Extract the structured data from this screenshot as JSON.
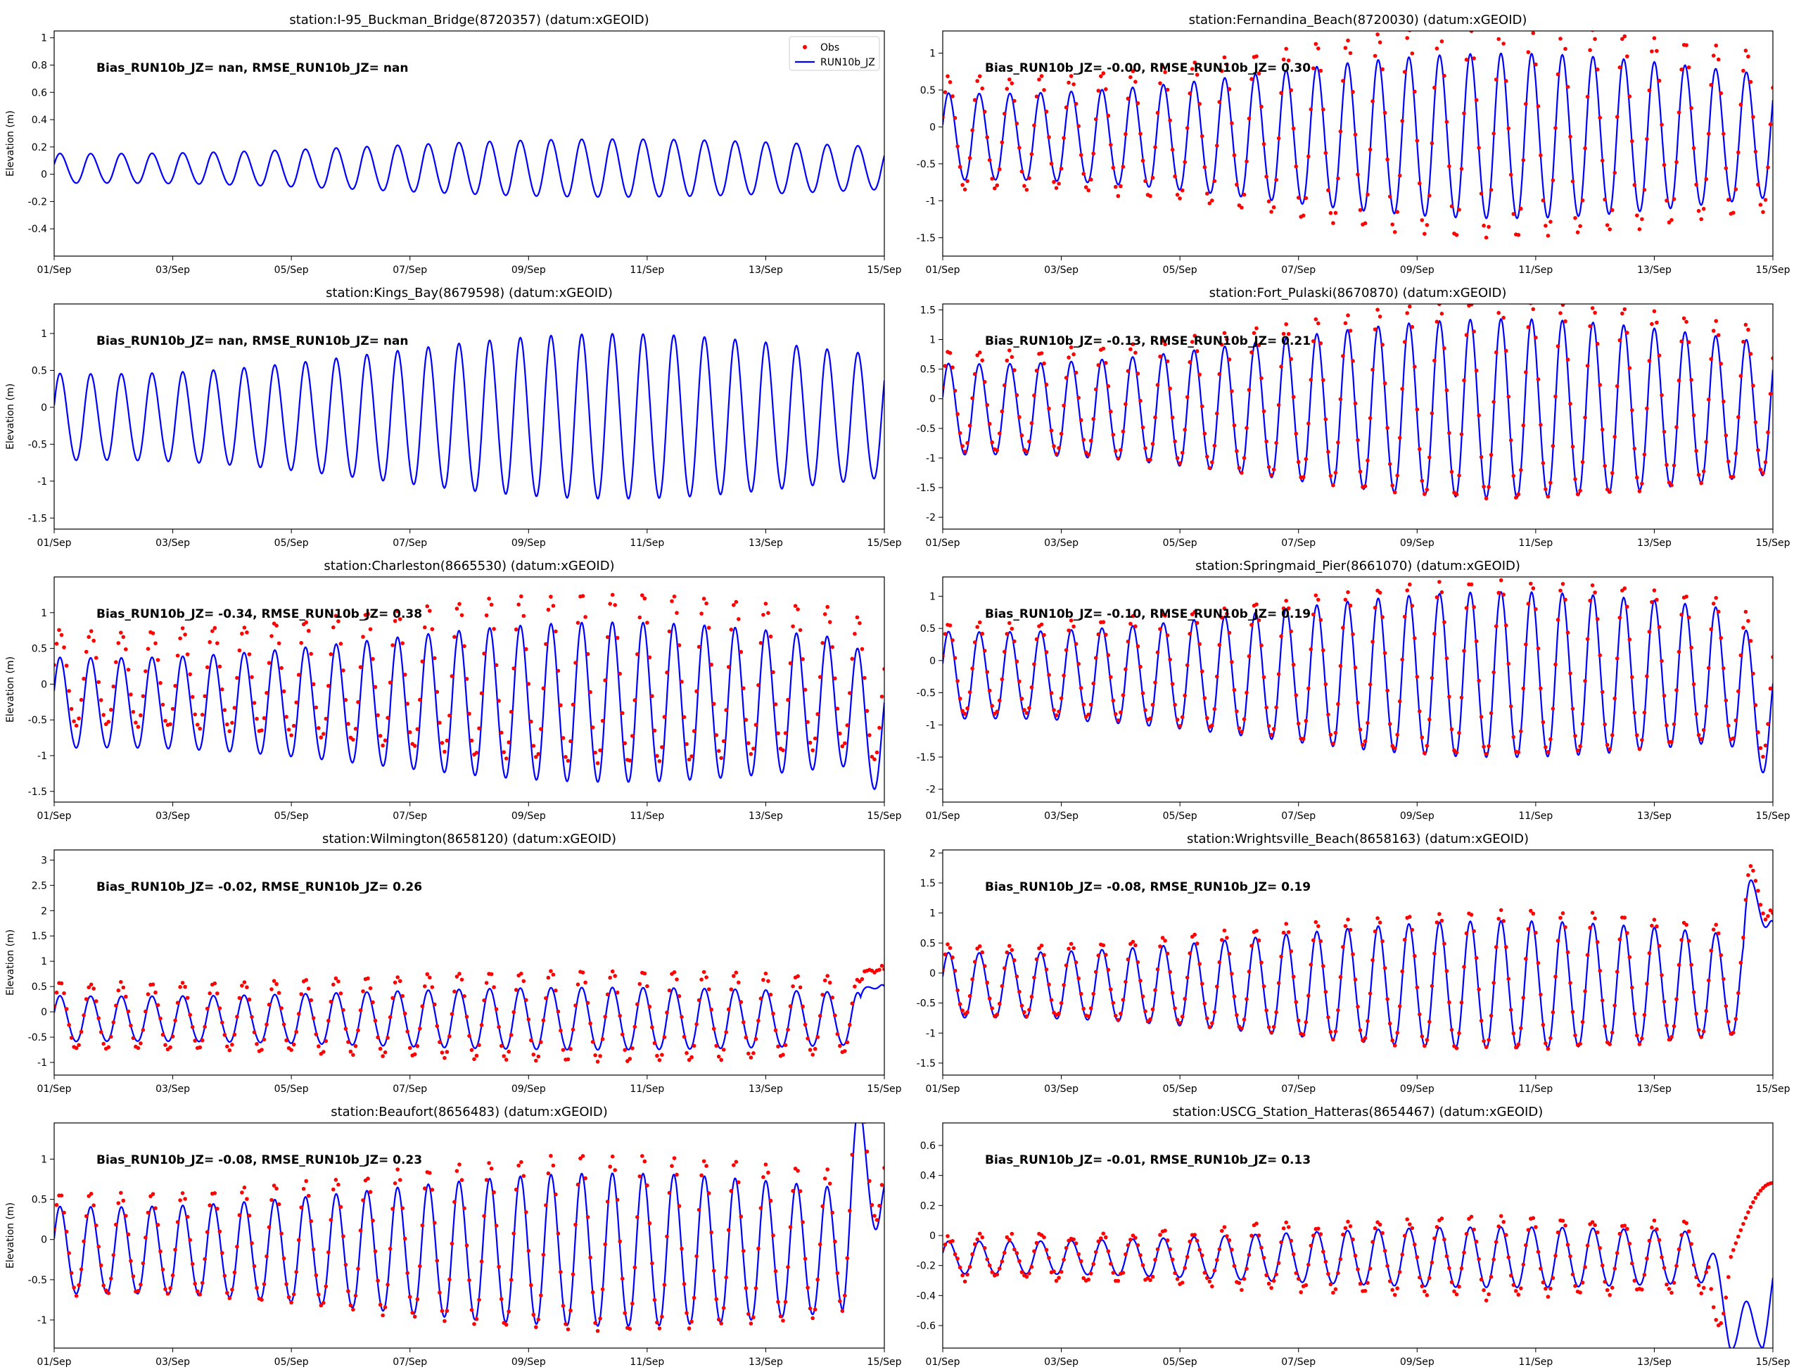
{
  "figure": {
    "xlabel": "",
    "ylabel": "Elevation (m)",
    "x_tick_labels": [
      "01/Sep",
      "03/Sep",
      "05/Sep",
      "07/Sep",
      "09/Sep",
      "11/Sep",
      "13/Sep",
      "15/Sep"
    ],
    "legend": {
      "obs_label": "Obs",
      "model_label": "RUN10b_JZ",
      "placement": "top-right of first panel"
    },
    "colors": {
      "obs": "#ff0000",
      "model": "#0000ff",
      "axes": "#000000",
      "background": "#ffffff"
    }
  },
  "chart_data": [
    {
      "type": "line",
      "title": "station:I-95_Buckman_Bridge(8720357) (datum:xGEOID)",
      "stats": "Bias_RUN10b_JZ=   nan, RMSE_RUN10b_JZ=   nan",
      "ylabel": "Elevation (m)",
      "ylim": [
        -0.6,
        1.05
      ],
      "yticks": [
        -0.4,
        -0.2,
        0.0,
        0.2,
        0.4,
        0.6,
        0.8,
        1.0
      ],
      "xlim_days": [
        0,
        14
      ],
      "has_obs": false,
      "show_legend": true,
      "model_mean": 0.04,
      "model_amp_start": 0.12,
      "model_amp_end": 0.19,
      "obs_bias": 0,
      "obs_amp_factor": 1,
      "event": null
    },
    {
      "type": "line",
      "title": "station:Fernandina_Beach(8720030) (datum:xGEOID)",
      "stats": "Bias_RUN10b_JZ= -0.00, RMSE_RUN10b_JZ=  0.30",
      "ylabel": "",
      "ylim": [
        -1.75,
        1.3
      ],
      "yticks": [
        -1.5,
        -1.0,
        -0.5,
        0.0,
        0.5,
        1.0
      ],
      "xlim_days": [
        0,
        14
      ],
      "has_obs": true,
      "show_legend": false,
      "model_mean": -0.15,
      "model_amp_start": 0.65,
      "model_amp_end": 1.0,
      "obs_bias": 0.05,
      "obs_amp_factor": 1.28,
      "event": null
    },
    {
      "type": "line",
      "title": "station:Kings_Bay(8679598) (datum:xGEOID)",
      "stats": "Bias_RUN10b_JZ=   nan, RMSE_RUN10b_JZ=   nan",
      "ylabel": "Elevation (m)",
      "ylim": [
        -1.65,
        1.4
      ],
      "yticks": [
        -1.5,
        -1.0,
        -0.5,
        0.0,
        0.5,
        1.0
      ],
      "xlim_days": [
        0,
        14
      ],
      "has_obs": false,
      "show_legend": false,
      "model_mean": -0.15,
      "model_amp_start": 0.65,
      "model_amp_end": 1.0,
      "obs_bias": 0,
      "obs_amp_factor": 1,
      "event": null
    },
    {
      "type": "line",
      "title": "station:Fort_Pulaski(8670870) (datum:xGEOID)",
      "stats": "Bias_RUN10b_JZ= -0.13, RMSE_RUN10b_JZ=  0.21",
      "ylabel": "",
      "ylim": [
        -2.2,
        1.6
      ],
      "yticks": [
        -2.0,
        -1.5,
        -1.0,
        -0.5,
        0.0,
        0.5,
        1.0,
        1.5
      ],
      "xlim_days": [
        0,
        14
      ],
      "has_obs": true,
      "show_legend": false,
      "model_mean": -0.2,
      "model_amp_start": 0.85,
      "model_amp_end": 1.35,
      "obs_bias": 0.13,
      "obs_amp_factor": 1.1,
      "event": null
    },
    {
      "type": "line",
      "title": "station:Charleston(8665530) (datum:xGEOID)",
      "stats": "Bias_RUN10b_JZ= -0.34, RMSE_RUN10b_JZ=  0.38",
      "ylabel": "Elevation (m)",
      "ylim": [
        -1.65,
        1.5
      ],
      "yticks": [
        -1.5,
        -1.0,
        -0.5,
        0.0,
        0.5,
        1.0
      ],
      "xlim_days": [
        0,
        14
      ],
      "has_obs": true,
      "show_legend": false,
      "model_mean": -0.28,
      "model_amp_start": 0.7,
      "model_amp_end": 1.0,
      "obs_bias": 0.34,
      "obs_amp_factor": 1.05,
      "event": {
        "type": "dip",
        "start": 13.4,
        "end": 14.0,
        "amount": -0.5,
        "obs_amount": -0.2
      }
    },
    {
      "type": "line",
      "title": "station:Springmaid_Pier(8661070) (datum:xGEOID)",
      "stats": "Bias_RUN10b_JZ= -0.10, RMSE_RUN10b_JZ=  0.19",
      "ylabel": "",
      "ylim": [
        -2.2,
        1.3
      ],
      "yticks": [
        -2.0,
        -1.5,
        -1.0,
        -0.5,
        0.0,
        0.5,
        1.0
      ],
      "xlim_days": [
        0,
        14
      ],
      "has_obs": true,
      "show_legend": false,
      "model_mean": -0.25,
      "model_amp_start": 0.75,
      "model_amp_end": 1.15,
      "obs_bias": 0.1,
      "obs_amp_factor": 1.05,
      "event": {
        "type": "dip",
        "start": 13.2,
        "end": 14.0,
        "amount": -0.7,
        "obs_amount": -0.1
      }
    },
    {
      "type": "line",
      "title": "station:Wilmington(8658120) (datum:xGEOID)",
      "stats": "Bias_RUN10b_JZ= -0.02, RMSE_RUN10b_JZ=  0.26",
      "ylabel": "Elevation (m)",
      "ylim": [
        -1.25,
        3.2
      ],
      "yticks": [
        -1.0,
        -0.5,
        0.0,
        0.5,
        1.0,
        1.5,
        2.0,
        2.5,
        3.0
      ],
      "xlim_days": [
        0,
        14
      ],
      "has_obs": true,
      "show_legend": false,
      "model_mean": -0.15,
      "model_amp_start": 0.5,
      "model_amp_end": 0.55,
      "obs_bias": 0.05,
      "obs_amp_factor": 1.45,
      "event": {
        "type": "surge",
        "start": 13.6,
        "end": 14.0,
        "amount": 1.1,
        "obs_amount": 1.3
      }
    },
    {
      "type": "line",
      "title": "station:Wrightsville_Beach(8658163) (datum:xGEOID)",
      "stats": "Bias_RUN10b_JZ= -0.08, RMSE_RUN10b_JZ=  0.19",
      "ylabel": "",
      "ylim": [
        -1.7,
        2.05
      ],
      "yticks": [
        -1.5,
        -1.0,
        -0.5,
        0.0,
        0.5,
        1.0,
        1.5,
        2.0
      ],
      "xlim_days": [
        0,
        14
      ],
      "has_obs": true,
      "show_legend": false,
      "model_mean": -0.22,
      "model_amp_start": 0.6,
      "model_amp_end": 0.95,
      "obs_bias": 0.08,
      "obs_amp_factor": 1.08,
      "event": {
        "type": "surge",
        "start": 13.5,
        "end": 14.0,
        "amount": 1.9,
        "obs_amount": 1.6
      }
    },
    {
      "type": "line",
      "title": "station:Beaufort(8656483) (datum:xGEOID)",
      "stats": "Bias_RUN10b_JZ= -0.08, RMSE_RUN10b_JZ=  0.23",
      "ylabel": "Elevation (m)",
      "ylim": [
        -1.35,
        1.45
      ],
      "yticks": [
        -1.0,
        -0.5,
        0.0,
        0.5,
        1.0
      ],
      "xlim_days": [
        0,
        14
      ],
      "has_obs": true,
      "show_legend": false,
      "model_mean": -0.15,
      "model_amp_start": 0.6,
      "model_amp_end": 0.85,
      "obs_bias": 0.08,
      "obs_amp_factor": 1.15,
      "event": {
        "type": "surge",
        "start": 13.3,
        "end": 14.0,
        "amount": 1.2,
        "obs_amount": 1.1
      }
    },
    {
      "type": "line",
      "title": "station:USCG_Station_Hatteras(8654467) (datum:xGEOID)",
      "stats": "Bias_RUN10b_JZ= -0.01, RMSE_RUN10b_JZ=  0.13",
      "ylabel": "",
      "ylim": [
        -0.75,
        0.75
      ],
      "yticks": [
        -0.6,
        -0.4,
        -0.2,
        0.0,
        0.2,
        0.4,
        0.6
      ],
      "xlim_days": [
        0,
        14
      ],
      "has_obs": true,
      "show_legend": false,
      "model_mean": -0.15,
      "model_amp_start": 0.12,
      "model_amp_end": 0.18,
      "obs_bias": 0.0,
      "obs_amp_factor": 1.3,
      "event": {
        "type": "hatteras",
        "start": 12.9,
        "end": 14.0,
        "amount": -0.45,
        "obs_amount": 0.35
      }
    }
  ]
}
